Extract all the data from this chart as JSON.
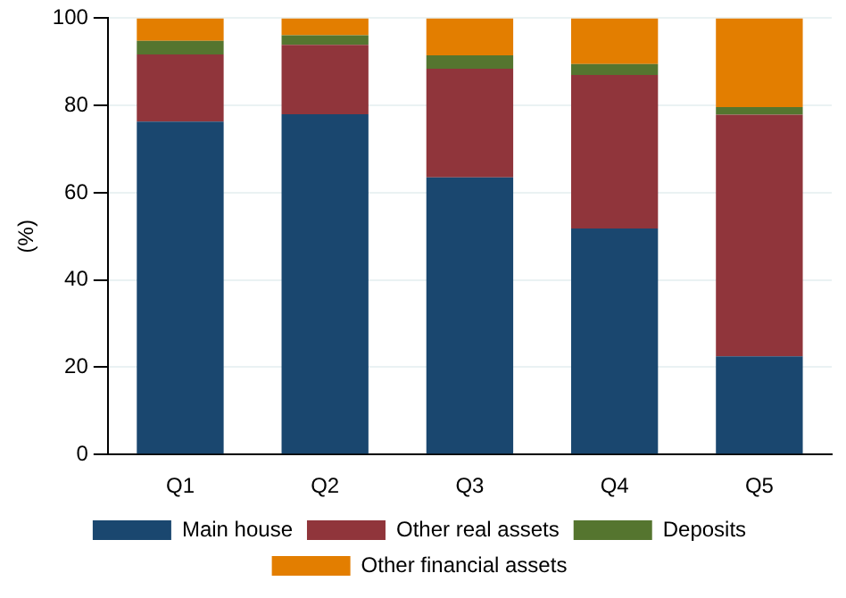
{
  "chart_data": {
    "type": "bar",
    "stacked": true,
    "ylabel": "(%)",
    "categories": [
      "Q1",
      "Q2",
      "Q3",
      "Q4",
      "Q5"
    ],
    "series": [
      {
        "name": "Main house",
        "color": "#1a476f",
        "values": [
          76.3,
          78.0,
          63.5,
          51.8,
          22.5
        ]
      },
      {
        "name": "Other real assets",
        "color": "#90353b",
        "values": [
          15.4,
          15.9,
          24.9,
          35.2,
          55.4
        ]
      },
      {
        "name": "Deposits",
        "color": "#55752f",
        "values": [
          3.1,
          2.2,
          3.1,
          2.5,
          1.7
        ]
      },
      {
        "name": "Other financial assets",
        "color": "#e37e00",
        "values": [
          5.2,
          3.9,
          8.5,
          10.5,
          20.4
        ]
      }
    ],
    "ylim": [
      0,
      100
    ],
    "yticks": [
      0,
      20,
      40,
      60,
      80,
      100
    ],
    "grid": "y",
    "legend": "bottom"
  }
}
